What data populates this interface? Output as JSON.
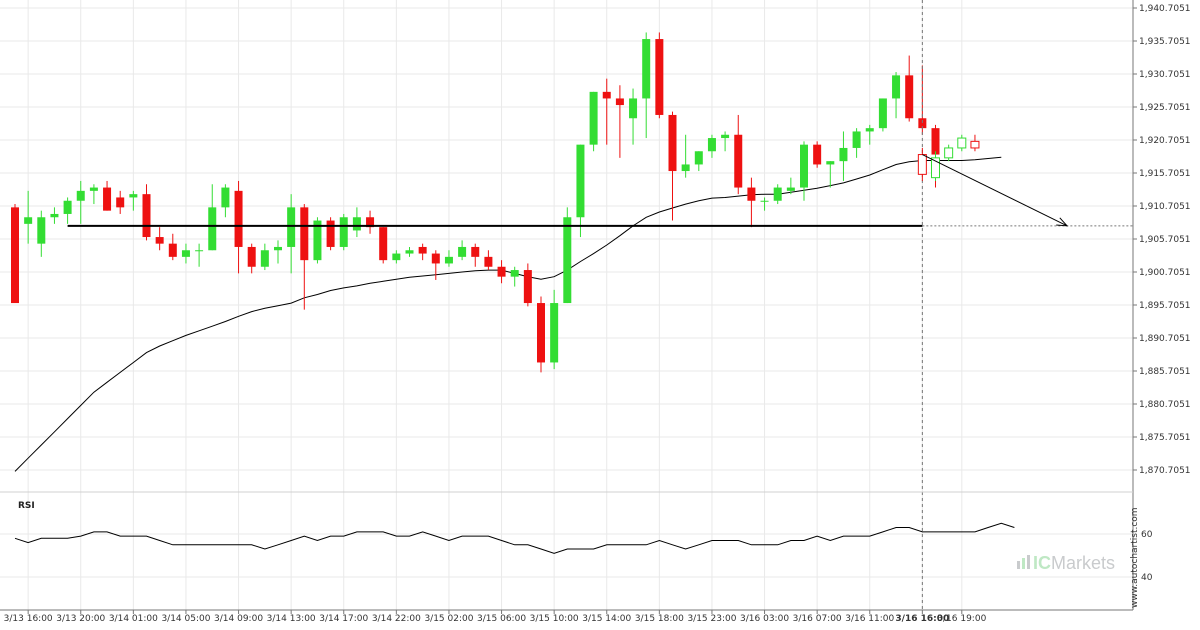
{
  "colors": {
    "up": "#33dd33",
    "down": "#ee1111",
    "wick": "#555555",
    "sma": "#000000",
    "support": "#000000",
    "projection": "#000000",
    "grid": "#e9e9e9",
    "axis": "#777777",
    "rsi": "#000000"
  },
  "brand": {
    "prefix": "IC",
    "name": "Markets",
    "site": "www.autochartist.com"
  },
  "rsi_panel": {
    "title": "RSI",
    "levels": [
      "60",
      "40"
    ]
  },
  "chart_data": {
    "type": "candlestick",
    "price_axis": {
      "min": 1867.7051,
      "max": 1940.7051,
      "ticks": [
        "1,940.7051",
        "1,935.7051",
        "1,930.7051",
        "1,925.7051",
        "1,920.7051",
        "1,915.7051",
        "1,910.7051",
        "1,905.7051",
        "1,900.7051",
        "1,895.7051",
        "1,890.7051",
        "1,885.7051",
        "1,880.7051",
        "1,875.7051",
        "1,870.7051"
      ],
      "tick_values": [
        1940.7051,
        1935.7051,
        1930.7051,
        1925.7051,
        1920.7051,
        1915.7051,
        1910.7051,
        1905.7051,
        1900.7051,
        1895.7051,
        1890.7051,
        1885.7051,
        1880.7051,
        1875.7051,
        1870.7051
      ]
    },
    "x_labels": [
      {
        "label": "3/13 16:00",
        "index": 1
      },
      {
        "label": "3/13 20:00",
        "index": 5
      },
      {
        "label": "3/14 01:00",
        "index": 9
      },
      {
        "label": "3/14 05:00",
        "index": 13
      },
      {
        "label": "3/14 09:00",
        "index": 17
      },
      {
        "label": "3/14 13:00",
        "index": 21
      },
      {
        "label": "3/14 17:00",
        "index": 25
      },
      {
        "label": "3/14 22:00",
        "index": 29
      },
      {
        "label": "3/15 02:00",
        "index": 33
      },
      {
        "label": "3/15 06:00",
        "index": 37
      },
      {
        "label": "3/15 10:00",
        "index": 41
      },
      {
        "label": "3/15 14:00",
        "index": 45
      },
      {
        "label": "3/15 18:00",
        "index": 49
      },
      {
        "label": "3/15 23:00",
        "index": 53
      },
      {
        "label": "3/16 03:00",
        "index": 57
      },
      {
        "label": "3/16 07:00",
        "index": 61
      },
      {
        "label": "3/16 11:00",
        "index": 65
      },
      {
        "label": "3/16 16:00",
        "index": 69,
        "bold": true
      },
      {
        "label": "3/16 19:00",
        "index": 72
      }
    ],
    "candles": [
      [
        1910.5,
        1911,
        1896,
        1896
      ],
      [
        1908,
        1913,
        1905,
        1909
      ],
      [
        1905,
        1910,
        1903,
        1909
      ],
      [
        1909,
        1910.5,
        1908,
        1909.5
      ],
      [
        1909.5,
        1912,
        1908,
        1911.5
      ],
      [
        1911.5,
        1914.5,
        1908,
        1913
      ],
      [
        1913,
        1914,
        1911,
        1913.5
      ],
      [
        1913.5,
        1914.5,
        1910,
        1910
      ],
      [
        1912,
        1913,
        1909.5,
        1910.5
      ],
      [
        1912,
        1913,
        1910,
        1912.5
      ],
      [
        1912.5,
        1914,
        1905.5,
        1906
      ],
      [
        1906,
        1907.5,
        1904,
        1905
      ],
      [
        1905,
        1906.5,
        1902.5,
        1903
      ],
      [
        1903,
        1905,
        1902,
        1904
      ],
      [
        1904,
        1905,
        1901.5,
        1904
      ],
      [
        1904,
        1914,
        1904,
        1910.5
      ],
      [
        1910.5,
        1914,
        1909,
        1913.5
      ],
      [
        1913,
        1914.5,
        1900.5,
        1904.5
      ],
      [
        1904.5,
        1905,
        1900.5,
        1901.5
      ],
      [
        1901.5,
        1905,
        1901,
        1904
      ],
      [
        1904,
        1905.5,
        1902,
        1904.5
      ],
      [
        1904.5,
        1912.5,
        1900.5,
        1910.5
      ],
      [
        1910.5,
        1911,
        1895,
        1902.5
      ],
      [
        1902.5,
        1909,
        1902,
        1908.5
      ],
      [
        1908.5,
        1909,
        1904,
        1904.5
      ],
      [
        1904.5,
        1909.5,
        1904,
        1909
      ],
      [
        1907,
        1910.5,
        1906,
        1909
      ],
      [
        1909,
        1910,
        1906.5,
        1907.5
      ],
      [
        1907.5,
        1907.5,
        1902,
        1902.5
      ],
      [
        1902.5,
        1904,
        1902,
        1903.5
      ],
      [
        1903.5,
        1904.5,
        1903,
        1904
      ],
      [
        1904.5,
        1905,
        1902.5,
        1903.5
      ],
      [
        1903.5,
        1904,
        1899.5,
        1902
      ],
      [
        1902,
        1904,
        1901.5,
        1903
      ],
      [
        1903,
        1905.5,
        1902.5,
        1904.5
      ],
      [
        1904.5,
        1905,
        1901.5,
        1903
      ],
      [
        1903,
        1904,
        1901,
        1901.5
      ],
      [
        1901.5,
        1902.5,
        1899,
        1900
      ],
      [
        1900,
        1901.5,
        1898.5,
        1901
      ],
      [
        1901,
        1902,
        1895.5,
        1896
      ],
      [
        1896,
        1897,
        1885.5,
        1887
      ],
      [
        1887,
        1898,
        1886,
        1896
      ],
      [
        1896,
        1910.5,
        1896,
        1909
      ],
      [
        1909,
        1920,
        1906,
        1920
      ],
      [
        1920,
        1928,
        1919,
        1928
      ],
      [
        1928,
        1930,
        1920,
        1927
      ],
      [
        1927,
        1929,
        1918,
        1926
      ],
      [
        1924,
        1928.5,
        1920,
        1927
      ],
      [
        1927,
        1937,
        1921,
        1936
      ],
      [
        1936,
        1937,
        1924,
        1924.5
      ],
      [
        1924.5,
        1925,
        1908.5,
        1916
      ],
      [
        1916,
        1921.5,
        1915,
        1917
      ],
      [
        1917,
        1919,
        1916,
        1919
      ],
      [
        1919,
        1921.5,
        1918,
        1921
      ],
      [
        1921,
        1922,
        1919,
        1921.5
      ],
      [
        1921.5,
        1924.5,
        1912.5,
        1913.5
      ],
      [
        1913.5,
        1915,
        1907.5,
        1911.5
      ],
      [
        1911.5,
        1912,
        1910,
        1911.5
      ],
      [
        1911.5,
        1914,
        1911,
        1913.5
      ],
      [
        1913,
        1915,
        1912.5,
        1913.5
      ],
      [
        1913.5,
        1920.5,
        1911.5,
        1920
      ],
      [
        1920,
        1920.5,
        1916.5,
        1917
      ],
      [
        1917,
        1917.5,
        1913.5,
        1917.5
      ],
      [
        1917.5,
        1922,
        1914.5,
        1919.5
      ],
      [
        1919.5,
        1922.5,
        1918,
        1922
      ],
      [
        1922,
        1923,
        1920,
        1922.5
      ],
      [
        1922.5,
        1927,
        1922,
        1927
      ],
      [
        1927,
        1931,
        1924,
        1930.5
      ],
      [
        1930.5,
        1933.5,
        1923.5,
        1924
      ],
      [
        1924,
        1932,
        1921.5,
        1922.5
      ],
      [
        1922.5,
        1923,
        1913.5,
        1918.5
      ]
    ],
    "projection_candles": [
      {
        "dir": "down",
        "ohlc": [
          1918.5,
          1919.5,
          1914.5,
          1915.5
        ]
      },
      {
        "dir": "up",
        "ohlc": [
          1915,
          1919,
          1914.5,
          1918
        ]
      },
      {
        "dir": "up",
        "ohlc": [
          1918,
          1920,
          1917.5,
          1919.5
        ]
      },
      {
        "dir": "up",
        "ohlc": [
          1919.5,
          1921.5,
          1919,
          1921
        ]
      },
      {
        "dir": "down",
        "ohlc": [
          1920.5,
          1921.5,
          1919,
          1919.5
        ]
      }
    ],
    "sma": [
      1870.5,
      1872.5,
      1874.5,
      1876.5,
      1878.5,
      1880.5,
      1882.5,
      1884,
      1885.5,
      1887,
      1888.5,
      1889.5,
      1890.3,
      1891.1,
      1891.8,
      1892.5,
      1893.2,
      1894,
      1894.7,
      1895.2,
      1895.6,
      1896,
      1896.8,
      1897.3,
      1897.9,
      1898.3,
      1898.6,
      1899,
      1899.3,
      1899.6,
      1899.9,
      1900.1,
      1900.3,
      1900.5,
      1900.7,
      1900.9,
      1901,
      1901,
      1900.5,
      1900,
      1899.6,
      1900,
      1901,
      1902.3,
      1903.5,
      1904.8,
      1906.2,
      1907.7,
      1909,
      1909.8,
      1910.4,
      1911,
      1911.5,
      1911.9,
      1912,
      1912.2,
      1912.4,
      1912.5,
      1912.5,
      1912.8,
      1913.1,
      1913.4,
      1913.8,
      1914.2,
      1914.8,
      1915.4,
      1916.2,
      1917,
      1917.4,
      1917.6,
      1917.6,
      1917.6,
      1917.6,
      1917.7,
      1917.9,
      1918.1
    ],
    "support_level": 1907.7,
    "support_from_index": 4,
    "support_to_index": 69,
    "projection_start": {
      "index": 69,
      "value": 1918.5
    },
    "projection_end": {
      "index": 80,
      "value": 1907.7
    },
    "rsi": {
      "min": 30,
      "max": 75,
      "values": [
        58,
        56,
        58,
        58,
        58,
        59,
        61,
        61,
        59,
        59,
        59,
        57,
        55,
        55,
        55,
        55,
        55,
        55,
        55,
        53,
        55,
        57,
        59,
        57,
        59,
        59,
        61,
        61,
        61,
        59,
        59,
        61,
        59,
        57,
        59,
        59,
        59,
        57,
        55,
        55,
        53,
        51,
        53,
        53,
        53,
        55,
        55,
        55,
        55,
        57,
        55,
        53,
        55,
        57,
        57,
        57,
        55,
        55,
        55,
        57,
        57,
        59,
        57,
        59,
        59,
        59,
        61,
        63,
        63,
        61,
        61,
        61,
        61,
        61,
        63,
        65,
        63
      ]
    }
  }
}
